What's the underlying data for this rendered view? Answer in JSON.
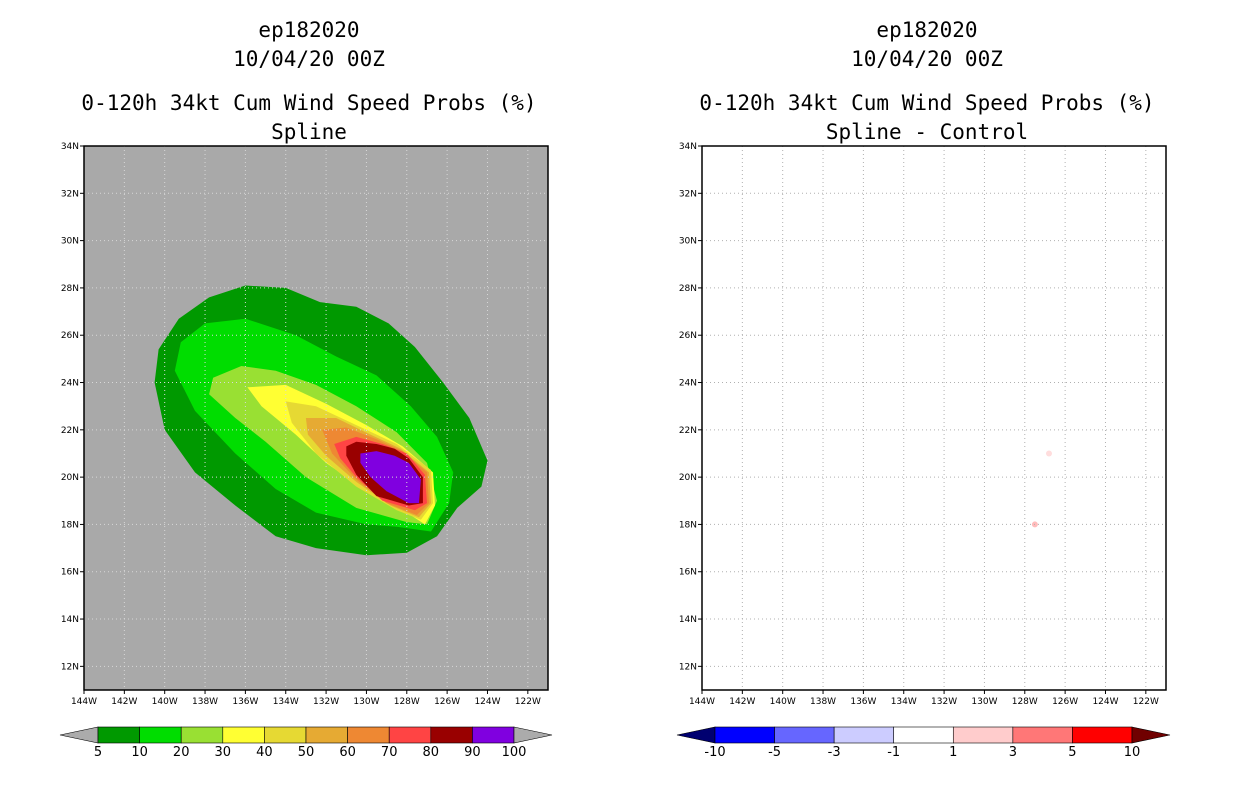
{
  "chart_data": [
    {
      "type": "heatmap",
      "id": "left",
      "storm": "ep182020",
      "datetime": "10/04/20 00Z",
      "product": "0-120h 34kt Cum Wind Speed Probs (%)",
      "subtitle": "Spline",
      "xlim": [
        -144,
        -121
      ],
      "ylim": [
        11,
        34
      ],
      "x_ticks": [
        "144W",
        "142W",
        "140W",
        "138W",
        "136W",
        "134W",
        "132W",
        "130W",
        "128W",
        "126W",
        "124W",
        "122W"
      ],
      "y_ticks": [
        "12N",
        "14N",
        "16N",
        "18N",
        "20N",
        "22N",
        "24N",
        "26N",
        "28N",
        "30N",
        "32N",
        "34N"
      ],
      "background_color": "#a9a9a9",
      "colorbar": {
        "colors": [
          "#ababab",
          "#009900",
          "#00dd00",
          "#99e033",
          "#ffff33",
          "#e6d933",
          "#e6aa33",
          "#ee8833",
          "#ff4444",
          "#990000",
          "#8000e0",
          "#ababab"
        ],
        "labels": [
          "5",
          "10",
          "20",
          "30",
          "40",
          "50",
          "60",
          "70",
          "80",
          "90",
          "100"
        ]
      },
      "contours": [
        {
          "level": 5,
          "color": "#009900",
          "points": [
            [
              -140.3,
              25.4
            ],
            [
              -139.3,
              26.7
            ],
            [
              -137.8,
              27.6
            ],
            [
              -136.0,
              28.1
            ],
            [
              -134.0,
              28.0
            ],
            [
              -132.3,
              27.4
            ],
            [
              -130.5,
              27.2
            ],
            [
              -128.9,
              26.5
            ],
            [
              -127.6,
              25.5
            ],
            [
              -126.2,
              24.0
            ],
            [
              -124.9,
              22.5
            ],
            [
              -124.0,
              20.7
            ],
            [
              -124.3,
              19.6
            ],
            [
              -125.5,
              18.7
            ],
            [
              -126.5,
              17.5
            ],
            [
              -128.0,
              16.8
            ],
            [
              -130.0,
              16.7
            ],
            [
              -132.5,
              17.0
            ],
            [
              -134.5,
              17.5
            ],
            [
              -136.5,
              18.8
            ],
            [
              -138.5,
              20.2
            ],
            [
              -140.0,
              22.0
            ],
            [
              -140.5,
              24.0
            ]
          ]
        },
        {
          "level": 10,
          "color": "#00dd00",
          "points": [
            [
              -139.2,
              25.7
            ],
            [
              -138.0,
              26.5
            ],
            [
              -136.0,
              26.7
            ],
            [
              -133.5,
              26.0
            ],
            [
              -131.5,
              25.1
            ],
            [
              -129.5,
              24.3
            ],
            [
              -127.8,
              23.0
            ],
            [
              -126.5,
              21.7
            ],
            [
              -125.7,
              20.2
            ],
            [
              -125.9,
              18.9
            ],
            [
              -126.8,
              17.7
            ],
            [
              -128.5,
              17.9
            ],
            [
              -130.0,
              18.0
            ],
            [
              -132.5,
              18.5
            ],
            [
              -134.5,
              19.5
            ],
            [
              -136.5,
              21.0
            ],
            [
              -138.5,
              22.8
            ],
            [
              -139.5,
              24.5
            ]
          ]
        },
        {
          "level": 20,
          "color": "#99e033",
          "points": [
            [
              -137.6,
              24.2
            ],
            [
              -136.2,
              24.7
            ],
            [
              -134.5,
              24.5
            ],
            [
              -132.5,
              23.9
            ],
            [
              -130.5,
              23.0
            ],
            [
              -128.5,
              21.9
            ],
            [
              -127.0,
              20.6
            ],
            [
              -126.5,
              19.0
            ],
            [
              -127.0,
              18.0
            ],
            [
              -128.0,
              18.1
            ],
            [
              -130.5,
              18.7
            ],
            [
              -133.0,
              20.0
            ],
            [
              -135.0,
              21.5
            ],
            [
              -136.5,
              22.5
            ],
            [
              -137.8,
              23.5
            ]
          ]
        },
        {
          "level": 30,
          "color": "#ffff33",
          "points": [
            [
              -135.9,
              23.8
            ],
            [
              -134.0,
              23.9
            ],
            [
              -132.0,
              23.1
            ],
            [
              -130.0,
              22.2
            ],
            [
              -128.2,
              21.3
            ],
            [
              -126.7,
              20.2
            ],
            [
              -126.6,
              18.8
            ],
            [
              -127.1,
              18.0
            ],
            [
              -128.0,
              18.5
            ],
            [
              -130.0,
              19.4
            ],
            [
              -132.0,
              20.6
            ],
            [
              -133.5,
              21.8
            ],
            [
              -135.2,
              23.0
            ]
          ]
        },
        {
          "level": 40,
          "color": "#e6d933",
          "points": [
            [
              -134.0,
              23.2
            ],
            [
              -132.5,
              23.0
            ],
            [
              -130.5,
              22.2
            ],
            [
              -128.5,
              21.4
            ],
            [
              -126.8,
              20.3
            ],
            [
              -126.7,
              18.9
            ],
            [
              -127.3,
              18.2
            ],
            [
              -128.5,
              18.6
            ],
            [
              -130.5,
              19.6
            ],
            [
              -132.5,
              21.0
            ],
            [
              -133.7,
              22.3
            ]
          ]
        },
        {
          "level": 50,
          "color": "#e6aa33",
          "points": [
            [
              -133.0,
              22.5
            ],
            [
              -131.5,
              22.5
            ],
            [
              -129.8,
              21.8
            ],
            [
              -128.3,
              21.2
            ],
            [
              -126.9,
              20.2
            ],
            [
              -126.8,
              18.9
            ],
            [
              -127.4,
              18.3
            ],
            [
              -128.8,
              18.8
            ],
            [
              -130.5,
              19.8
            ],
            [
              -132.0,
              20.9
            ],
            [
              -132.9,
              21.8
            ]
          ]
        },
        {
          "level": 60,
          "color": "#ee8833",
          "points": [
            [
              -132.2,
              22.0
            ],
            [
              -131.0,
              22.1
            ],
            [
              -129.5,
              21.6
            ],
            [
              -128.2,
              21.1
            ],
            [
              -127.0,
              20.2
            ],
            [
              -126.9,
              18.9
            ],
            [
              -127.5,
              18.4
            ],
            [
              -129.0,
              18.9
            ],
            [
              -130.5,
              19.9
            ],
            [
              -131.7,
              21.0
            ]
          ]
        },
        {
          "level": 70,
          "color": "#ff4444",
          "points": [
            [
              -131.6,
              21.4
            ],
            [
              -130.5,
              21.7
            ],
            [
              -129.2,
              21.4
            ],
            [
              -128.0,
              21.0
            ],
            [
              -127.1,
              20.1
            ],
            [
              -127.0,
              18.9
            ],
            [
              -127.6,
              18.6
            ],
            [
              -129.2,
              19.0
            ],
            [
              -130.5,
              20.0
            ],
            [
              -131.3,
              20.8
            ]
          ]
        },
        {
          "level": 80,
          "color": "#990000",
          "points": [
            [
              -131.0,
              21.3
            ],
            [
              -130.5,
              21.5
            ],
            [
              -129.5,
              21.4
            ],
            [
              -128.6,
              21.2
            ],
            [
              -127.9,
              20.8
            ],
            [
              -127.2,
              20.0
            ],
            [
              -127.2,
              18.9
            ],
            [
              -127.9,
              18.8
            ],
            [
              -129.5,
              19.2
            ],
            [
              -130.5,
              20.1
            ],
            [
              -131.0,
              20.9
            ]
          ]
        },
        {
          "level": 90,
          "color": "#8000e0",
          "points": [
            [
              -130.3,
              21.0
            ],
            [
              -129.5,
              21.1
            ],
            [
              -128.6,
              20.9
            ],
            [
              -127.9,
              20.6
            ],
            [
              -127.3,
              19.9
            ],
            [
              -127.4,
              18.9
            ],
            [
              -127.9,
              18.9
            ],
            [
              -129.0,
              19.4
            ],
            [
              -129.8,
              20.0
            ],
            [
              -130.3,
              20.6
            ]
          ]
        }
      ]
    },
    {
      "type": "heatmap",
      "id": "right",
      "storm": "ep182020",
      "datetime": "10/04/20 00Z",
      "product": "0-120h 34kt Cum Wind Speed Probs (%)",
      "subtitle": "Spline - Control",
      "xlim": [
        -144,
        -121
      ],
      "ylim": [
        11,
        34
      ],
      "x_ticks": [
        "144W",
        "142W",
        "140W",
        "138W",
        "136W",
        "134W",
        "132W",
        "130W",
        "128W",
        "126W",
        "124W",
        "122W"
      ],
      "y_ticks": [
        "12N",
        "14N",
        "16N",
        "18N",
        "20N",
        "22N",
        "24N",
        "26N",
        "28N",
        "30N",
        "32N",
        "34N"
      ],
      "background_color": "#ffffff",
      "grid": true,
      "colorbar": {
        "colors": [
          "#000070",
          "#0000ff",
          "#6666ff",
          "#ccccff",
          "#ffffff",
          "#ffcccc",
          "#ff7777",
          "#ff0000",
          "#700000"
        ],
        "labels": [
          "-10",
          "-5",
          "-3",
          "-1",
          "1",
          "3",
          "5",
          "10"
        ]
      },
      "anomalies": [
        {
          "lon": -127.5,
          "lat": 18.0,
          "color": "#ffbbbb"
        },
        {
          "lon": -126.8,
          "lat": 21.0,
          "color": "#ffdddd"
        }
      ]
    }
  ]
}
